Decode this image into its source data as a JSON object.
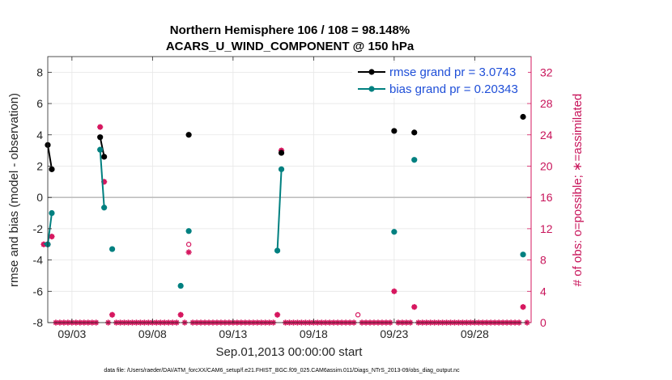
{
  "chart_data": {
    "type": "line",
    "title": "Northern Hemisphere 106 / 108 = 98.148%",
    "subtitle": "ACARS_U_WIND_COMPONENT @ 150 hPa",
    "xlabel": "Sep.01,2013 00:00:00 start",
    "ylabel": "rmse and bias (model - observation)",
    "y2label": "# of obs: o=possible; ∗=assimilated",
    "xlim": [
      1.5,
      31.5
    ],
    "ylim": [
      -8,
      9
    ],
    "y2lim": [
      0,
      34
    ],
    "x_ticks": [
      3,
      8,
      13,
      18,
      23,
      28
    ],
    "x_tick_labels": [
      "09/03",
      "09/08",
      "09/13",
      "09/18",
      "09/23",
      "09/28"
    ],
    "y_ticks": [
      -8,
      -6,
      -4,
      -2,
      0,
      2,
      4,
      6,
      8
    ],
    "y2_ticks": [
      0,
      4,
      8,
      12,
      16,
      20,
      24,
      28,
      32
    ],
    "grid": true,
    "legend_position": "top-right",
    "colors": {
      "rmse": "#000000",
      "bias": "#008080",
      "obs": "#d6175f",
      "zero_line": "#bfbfbf"
    },
    "series": [
      {
        "name": "rmse grand pr = 3.0743",
        "segments": [
          [
            [
              1.5,
              3.35
            ],
            [
              1.75,
              1.8
            ]
          ],
          [
            [
              4.75,
              3.85
            ],
            [
              5.0,
              2.6
            ]
          ],
          [
            [
              10.25,
              4.0
            ]
          ],
          [
            [
              16.0,
              2.85
            ]
          ],
          [
            [
              23.0,
              4.25
            ]
          ],
          [
            [
              24.25,
              4.15
            ]
          ],
          [
            [
              31.0,
              5.15
            ]
          ]
        ]
      },
      {
        "name": "bias grand pr = 0.20343",
        "segments": [
          [
            [
              1.25,
              -2.95
            ],
            [
              1.5,
              -3.0
            ],
            [
              1.75,
              -1.0
            ]
          ],
          [
            [
              4.75,
              3.05
            ],
            [
              5.0,
              -0.65
            ]
          ],
          [
            [
              5.5,
              -3.3
            ]
          ],
          [
            [
              9.75,
              -5.65
            ]
          ],
          [
            [
              10.25,
              -2.15
            ]
          ],
          [
            [
              15.75,
              -3.4
            ],
            [
              16.0,
              1.8
            ]
          ],
          [
            [
              23.0,
              -2.2
            ]
          ],
          [
            [
              24.25,
              2.4
            ]
          ],
          [
            [
              31.0,
              -3.65
            ]
          ]
        ]
      }
    ],
    "obs_assimilated": [
      [
        1.25,
        10
      ],
      [
        1.5,
        10
      ],
      [
        1.75,
        11
      ],
      [
        2,
        0
      ],
      [
        2.25,
        0
      ],
      [
        2.5,
        0
      ],
      [
        2.75,
        0
      ],
      [
        3,
        0
      ],
      [
        3.25,
        0
      ],
      [
        3.5,
        0
      ],
      [
        3.75,
        0
      ],
      [
        4,
        0
      ],
      [
        4.25,
        0
      ],
      [
        4.5,
        0
      ],
      [
        4.75,
        25
      ],
      [
        5,
        18
      ],
      [
        5.25,
        0
      ],
      [
        5.5,
        1
      ],
      [
        5.75,
        0
      ],
      [
        6,
        0
      ],
      [
        6.25,
        0
      ],
      [
        6.5,
        0
      ],
      [
        6.75,
        0
      ],
      [
        7,
        0
      ],
      [
        7.25,
        0
      ],
      [
        7.5,
        0
      ],
      [
        7.75,
        0
      ],
      [
        8,
        0
      ],
      [
        8.25,
        0
      ],
      [
        8.5,
        0
      ],
      [
        8.75,
        0
      ],
      [
        9,
        0
      ],
      [
        9.25,
        0
      ],
      [
        9.5,
        0
      ],
      [
        9.75,
        1
      ],
      [
        10,
        0
      ],
      [
        10.25,
        9
      ],
      [
        10.5,
        0
      ],
      [
        10.75,
        0
      ],
      [
        11,
        0
      ],
      [
        11.25,
        0
      ],
      [
        11.5,
        0
      ],
      [
        11.75,
        0
      ],
      [
        12,
        0
      ],
      [
        12.25,
        0
      ],
      [
        12.5,
        0
      ],
      [
        12.75,
        0
      ],
      [
        13,
        0
      ],
      [
        13.25,
        0
      ],
      [
        13.5,
        0
      ],
      [
        13.75,
        0
      ],
      [
        14,
        0
      ],
      [
        14.25,
        0
      ],
      [
        14.5,
        0
      ],
      [
        14.75,
        0
      ],
      [
        15,
        0
      ],
      [
        15.25,
        0
      ],
      [
        15.5,
        0
      ],
      [
        15.75,
        1
      ],
      [
        16,
        22
      ],
      [
        16.25,
        0
      ],
      [
        16.5,
        0
      ],
      [
        16.75,
        0
      ],
      [
        17,
        0
      ],
      [
        17.25,
        0
      ],
      [
        17.5,
        0
      ],
      [
        17.75,
        0
      ],
      [
        18,
        0
      ],
      [
        18.25,
        0
      ],
      [
        18.5,
        0
      ],
      [
        18.75,
        0
      ],
      [
        19,
        0
      ],
      [
        19.25,
        0
      ],
      [
        19.5,
        0
      ],
      [
        19.75,
        0
      ],
      [
        20,
        0
      ],
      [
        20.25,
        0
      ],
      [
        20.5,
        0
      ],
      [
        21,
        0
      ],
      [
        21.25,
        0
      ],
      [
        21.5,
        0
      ],
      [
        21.75,
        0
      ],
      [
        22,
        0
      ],
      [
        22.25,
        0
      ],
      [
        22.5,
        0
      ],
      [
        22.75,
        0
      ],
      [
        23,
        4
      ],
      [
        23.25,
        0
      ],
      [
        23.5,
        0
      ],
      [
        23.75,
        0
      ],
      [
        24,
        0
      ],
      [
        24.25,
        2
      ],
      [
        24.5,
        0
      ],
      [
        24.75,
        0
      ],
      [
        25,
        0
      ],
      [
        25.25,
        0
      ],
      [
        25.5,
        0
      ],
      [
        25.75,
        0
      ],
      [
        26,
        0
      ],
      [
        26.25,
        0
      ],
      [
        26.5,
        0
      ],
      [
        26.75,
        0
      ],
      [
        27,
        0
      ],
      [
        27.25,
        0
      ],
      [
        27.5,
        0
      ],
      [
        27.75,
        0
      ],
      [
        28,
        0
      ],
      [
        28.25,
        0
      ],
      [
        28.5,
        0
      ],
      [
        28.75,
        0
      ],
      [
        29,
        0
      ],
      [
        29.25,
        0
      ],
      [
        29.5,
        0
      ],
      [
        29.75,
        0
      ],
      [
        30,
        0
      ],
      [
        30.25,
        0
      ],
      [
        30.5,
        0
      ],
      [
        30.75,
        0
      ],
      [
        31,
        2
      ],
      [
        31.25,
        0
      ]
    ],
    "obs_possible": [
      [
        1.25,
        10
      ],
      [
        1.5,
        10
      ],
      [
        1.75,
        11
      ],
      [
        4.75,
        25
      ],
      [
        5,
        18
      ],
      [
        5.5,
        1
      ],
      [
        9.75,
        1
      ],
      [
        10.25,
        10
      ],
      [
        15.75,
        1
      ],
      [
        16,
        22
      ],
      [
        20.75,
        1
      ],
      [
        23,
        4
      ],
      [
        24.25,
        2
      ],
      [
        31,
        2
      ]
    ]
  },
  "footer": "data file: /Users/raeder/DAI/ATM_forcXX/CAM6_setup/f.e21.FHIST_BGC.f09_025.CAM6assim.011/Diags_NTrS_2013-09/obs_diag_output.nc"
}
